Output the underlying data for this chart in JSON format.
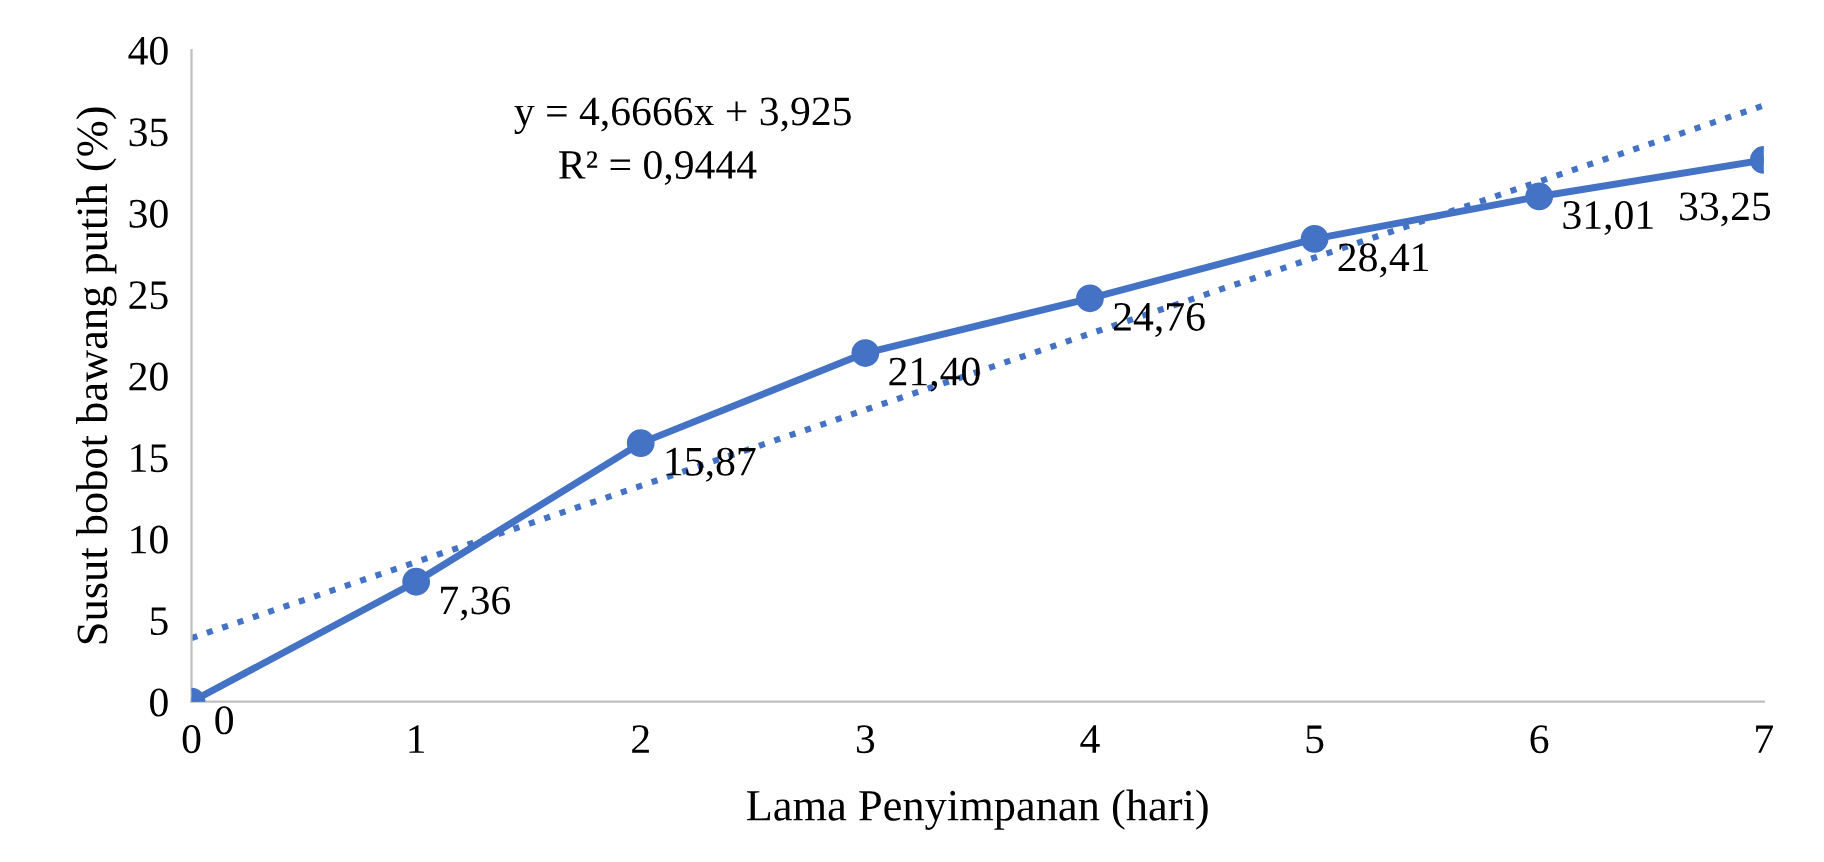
{
  "chart_data": {
    "type": "line",
    "xlabel": "Lama Penyimpanan (hari)",
    "ylabel": "Susut bobot bawang putih (%)",
    "x": [
      0,
      1,
      2,
      3,
      4,
      5,
      6,
      7
    ],
    "series": [
      {
        "color": "#4472c4",
        "marker": "circle",
        "line_style": "solid",
        "values": [
          0,
          7.36,
          15.87,
          21.4,
          24.76,
          28.41,
          31.01,
          33.25
        ],
        "value_labels": [
          "0",
          "7,36",
          "15,87",
          "21,40",
          "24,76",
          "28,41",
          "31,01",
          "33,25"
        ]
      },
      {
        "color": "#4472c4",
        "marker": "none",
        "line_style": "dotted",
        "x": [
          0,
          7
        ],
        "values": [
          3.9,
          36.6
        ]
      }
    ],
    "annotations": [
      "y = 4,6666x + 3,925",
      "R² = 0,9444"
    ],
    "xlim": [
      0,
      7
    ],
    "xticks": [
      0,
      1,
      2,
      3,
      4,
      5,
      6,
      7
    ],
    "ylim": [
      0,
      40
    ],
    "yticks": [
      0,
      5,
      10,
      15,
      20,
      25,
      30,
      35,
      40
    ],
    "grid": false,
    "legend": false
  }
}
